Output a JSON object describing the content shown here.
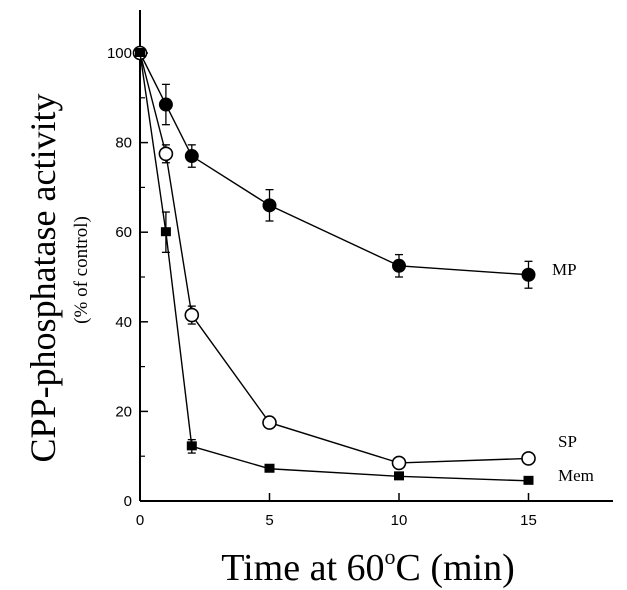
{
  "chart_data": {
    "type": "line",
    "ylabel": "CPP-phosphatase activity",
    "ylabel_sub": "(% of control)",
    "xlabel": {
      "prefix": "Time at 60",
      "sup": "o",
      "suffix": "C (min)"
    },
    "xlim": [
      0,
      19
    ],
    "ylim": [
      0,
      110
    ],
    "xticks": [
      0,
      5,
      10,
      15
    ],
    "yticks": [
      0,
      20,
      40,
      60,
      80,
      100
    ],
    "grid": false,
    "series": [
      {
        "name": "MP",
        "marker": "filled-circle",
        "x": [
          0,
          1,
          2,
          5,
          10,
          15
        ],
        "y": [
          100,
          88.5,
          77,
          66,
          52.5,
          50.5
        ],
        "err": [
          0,
          4.5,
          2.5,
          3.5,
          2.5,
          3
        ]
      },
      {
        "name": "SP",
        "marker": "open-circle",
        "x": [
          0,
          1,
          2,
          5,
          10,
          15
        ],
        "y": [
          100,
          77.5,
          41.5,
          17.5,
          8.5,
          9.5
        ],
        "err": [
          0,
          2,
          2,
          0,
          0,
          0
        ]
      },
      {
        "name": "Mem",
        "marker": "filled-square",
        "x": [
          0,
          1,
          2,
          5,
          10,
          15
        ],
        "y": [
          100,
          60,
          12.2,
          7.2,
          5.5,
          4.5
        ],
        "err": [
          0,
          4.5,
          1.5,
          0,
          0,
          0
        ]
      }
    ]
  }
}
